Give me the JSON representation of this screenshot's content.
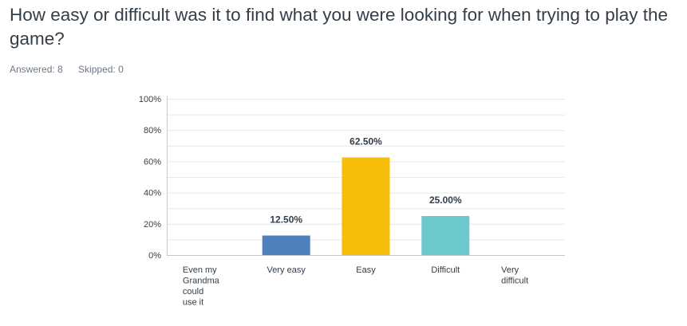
{
  "question": {
    "text": "How easy or difficult was it to find what you were looking for when trying to play the game?"
  },
  "meta": {
    "answered": "Answered: 8",
    "skipped": "Skipped: 0"
  },
  "colors": {
    "very_easy": "#4f7fbd",
    "easy": "#f6bd09",
    "difficult": "#6bc8cd",
    "grid": "#e6e6e6",
    "axis": "#c8c8c8"
  },
  "chart_data": {
    "type": "bar",
    "categories": [
      [
        "Even my",
        "Grandma",
        "could",
        "use it"
      ],
      [
        "Very easy"
      ],
      [
        "Easy"
      ],
      [
        "Difficult"
      ],
      [
        "Very",
        "difficult"
      ]
    ],
    "values": [
      0,
      12.5,
      62.5,
      25.0,
      0
    ],
    "data_labels": [
      "",
      "12.50%",
      "62.50%",
      "25.00%",
      ""
    ],
    "bar_colors": [
      "#4f7fbd",
      "#4f7fbd",
      "#f6bd09",
      "#6bc8cd",
      "#4f7fbd"
    ],
    "yticks": [
      {
        "value": 100,
        "label": "100%"
      },
      {
        "value": 80,
        "label": "80%"
      },
      {
        "value": 60,
        "label": "60%"
      },
      {
        "value": 40,
        "label": "40%"
      },
      {
        "value": 20,
        "label": "20%"
      },
      {
        "value": 0,
        "label": "0%"
      }
    ],
    "ylim": [
      0,
      100
    ],
    "minor_gridlines": true,
    "legend": "none"
  }
}
